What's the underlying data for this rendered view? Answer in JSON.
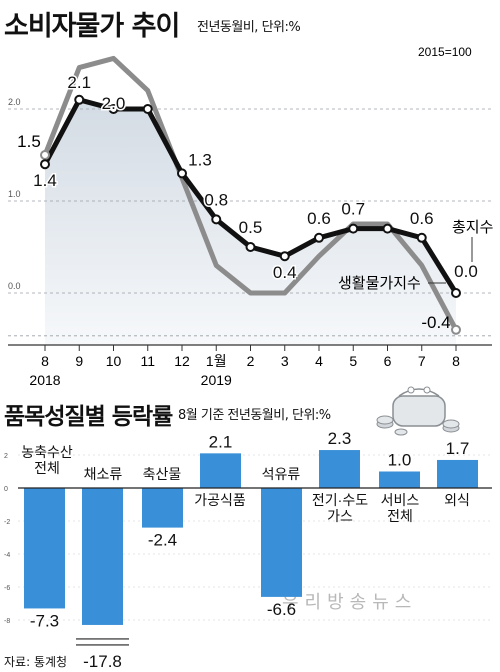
{
  "chart1": {
    "title": "소비자물가 추이",
    "subtitle": "전년동월비, 단위:%",
    "base_note": "2015=100",
    "x_labels": [
      "8",
      "9",
      "10",
      "11",
      "12",
      "1월",
      "2",
      "3",
      "4",
      "5",
      "6",
      "7",
      "8"
    ],
    "year_labels": [
      "2018",
      "2019"
    ],
    "y_ticks": [
      "2.0",
      "1.0",
      "0.0"
    ],
    "series_labels": [
      "총지수",
      "생활물가지수"
    ]
  },
  "chart2": {
    "title": "품목성질별 등락률",
    "subtitle": "8월 기준 전년동월비, 단위:%",
    "y_ticks": [
      "2",
      "0",
      "-2",
      "-4",
      "-6",
      "-8"
    ]
  },
  "source": "자료: 통계청",
  "watermark": "우리방송뉴스",
  "colors": {
    "total": "#111111",
    "living": "#8c8c8c",
    "bar": "#3a8fd9",
    "area": "#dde3ea"
  },
  "chart_data": [
    {
      "type": "line",
      "title": "소비자물가 추이",
      "subtitle": "전년동월비, 단위:%",
      "x": [
        "8",
        "9",
        "10",
        "11",
        "12",
        "1월",
        "2",
        "3",
        "4",
        "5",
        "6",
        "7",
        "8"
      ],
      "series": [
        {
          "name": "총지수",
          "values": [
            1.4,
            2.1,
            2.0,
            2.0,
            1.3,
            0.8,
            0.5,
            0.4,
            0.6,
            0.7,
            0.7,
            0.6,
            0.0
          ],
          "labels": [
            "1.4",
            "2.1",
            "2.0",
            "",
            "1.3",
            "0.8",
            "0.5",
            "0.4",
            "0.6",
            "0.7",
            "",
            "0.6",
            "0.0"
          ]
        },
        {
          "name": "생활물가지수",
          "values": [
            1.5,
            2.45,
            2.55,
            2.2,
            1.25,
            0.3,
            0.0,
            0.0,
            0.4,
            0.75,
            0.75,
            0.3,
            -0.4
          ],
          "labels": [
            "1.5",
            "",
            "",
            "",
            "",
            "",
            "",
            "",
            "",
            "",
            "",
            "",
            "-0.4"
          ]
        }
      ],
      "ylim": [
        -0.6,
        2.8
      ]
    },
    {
      "type": "bar",
      "title": "품목성질별 등락률",
      "subtitle": "8월 기준 전년동월비, 단위:%",
      "categories": [
        "농축수산\n전체",
        "채소류",
        "축산물",
        "가공식품",
        "석유류",
        "전기·수도\n가스",
        "서비스\n전체",
        "외식"
      ],
      "values": [
        -7.3,
        -17.8,
        -2.4,
        2.1,
        -6.6,
        2.3,
        1.0,
        1.7
      ],
      "value_labels": [
        "-7.3",
        "-17.8",
        "-2.4",
        "2.1",
        "-6.6",
        "2.3",
        "1.0",
        "1.7"
      ],
      "ylim": [
        -8,
        2
      ]
    }
  ]
}
